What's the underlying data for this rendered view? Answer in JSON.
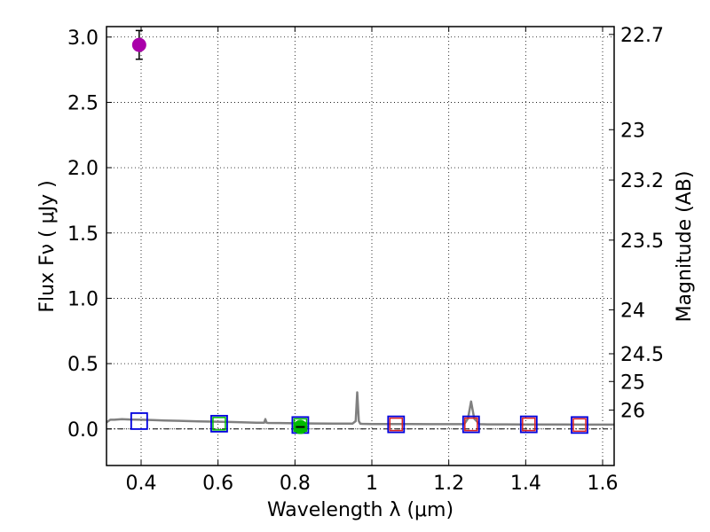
{
  "chart_data": {
    "type": "scatter",
    "title": "",
    "xlabel": "Wavelength  λ (μm)",
    "ylabel": "Flux  Fν  ( μJy )",
    "ylabel_right": "Magnitude (AB)",
    "xlim": [
      0.31,
      1.63
    ],
    "ylim": [
      -0.28,
      3.08
    ],
    "grid": true,
    "x_ticks": [
      {
        "value": 0.4,
        "label": "0.4"
      },
      {
        "value": 0.6,
        "label": "0.6"
      },
      {
        "value": 0.8,
        "label": "0.8"
      },
      {
        "value": 1.0,
        "label": "1"
      },
      {
        "value": 1.2,
        "label": "1.2"
      },
      {
        "value": 1.4,
        "label": "1.4"
      },
      {
        "value": 1.6,
        "label": "1.6"
      }
    ],
    "y_ticks": [
      {
        "value": 0.0,
        "label": "0.0"
      },
      {
        "value": 0.5,
        "label": "0.5"
      },
      {
        "value": 1.0,
        "label": "1.0"
      },
      {
        "value": 1.5,
        "label": "1.5"
      },
      {
        "value": 2.0,
        "label": "2.0"
      },
      {
        "value": 2.5,
        "label": "2.5"
      },
      {
        "value": 3.0,
        "label": "3.0"
      }
    ],
    "right_ticks": [
      {
        "value": 22.7,
        "label": "22.7"
      },
      {
        "value": 23.0,
        "label": "23"
      },
      {
        "value": 23.2,
        "label": "23.2"
      },
      {
        "value": 23.5,
        "label": "23.5"
      },
      {
        "value": 24.0,
        "label": "24"
      },
      {
        "value": 24.5,
        "label": "24.5"
      },
      {
        "value": 25.0,
        "label": "25"
      },
      {
        "value": 26.0,
        "label": "26"
      }
    ],
    "colors": {
      "spectrum": "#808080",
      "observed_high": "#aa00aa",
      "observed_low": "#00bb00",
      "model": "#0000dd",
      "model_inner_green": "#00bb00",
      "model_inner_red": "#dd2222",
      "errorbar": "#000000"
    },
    "series": [
      {
        "name": "template spectrum",
        "kind": "line",
        "x": [
          0.31,
          0.32,
          0.33,
          0.35,
          0.37,
          0.4,
          0.43,
          0.46,
          0.5,
          0.55,
          0.6,
          0.65,
          0.7,
          0.72,
          0.723,
          0.726,
          0.73,
          0.76,
          0.8,
          0.85,
          0.9,
          0.95,
          0.958,
          0.962,
          0.966,
          0.97,
          0.975,
          1.0,
          1.05,
          1.1,
          1.15,
          1.2,
          1.24,
          1.25,
          1.258,
          1.266,
          1.28,
          1.3,
          1.35,
          1.4,
          1.45,
          1.5,
          1.55,
          1.6,
          1.63
        ],
        "y": [
          0.05,
          0.07,
          0.07,
          0.075,
          0.072,
          0.07,
          0.068,
          0.065,
          0.062,
          0.058,
          0.055,
          0.052,
          0.048,
          0.047,
          0.075,
          0.048,
          0.046,
          0.045,
          0.043,
          0.042,
          0.041,
          0.041,
          0.06,
          0.28,
          0.06,
          0.04,
          0.039,
          0.038,
          0.038,
          0.037,
          0.036,
          0.036,
          0.036,
          0.08,
          0.21,
          0.08,
          0.036,
          0.035,
          0.035,
          0.034,
          0.034,
          0.034,
          0.033,
          0.033,
          0.033
        ]
      },
      {
        "name": "model photometry",
        "kind": "square",
        "points": [
          {
            "x": 0.395,
            "y": 0.06,
            "inner": "none"
          },
          {
            "x": 0.603,
            "y": 0.04,
            "inner": "green"
          },
          {
            "x": 0.814,
            "y": 0.03,
            "inner": "green"
          },
          {
            "x": 1.063,
            "y": 0.035,
            "inner": "red"
          },
          {
            "x": 1.258,
            "y": 0.035,
            "inner": "red"
          },
          {
            "x": 1.408,
            "y": 0.035,
            "inner": "red"
          },
          {
            "x": 1.54,
            "y": 0.03,
            "inner": "red"
          }
        ]
      },
      {
        "name": "observed photometry",
        "kind": "circle",
        "points": [
          {
            "x": 0.395,
            "y": 2.94,
            "err": 0.11,
            "color": "observed_high"
          },
          {
            "x": 0.814,
            "y": 0.015,
            "err": 0.0,
            "color": "observed_low"
          }
        ]
      }
    ]
  }
}
